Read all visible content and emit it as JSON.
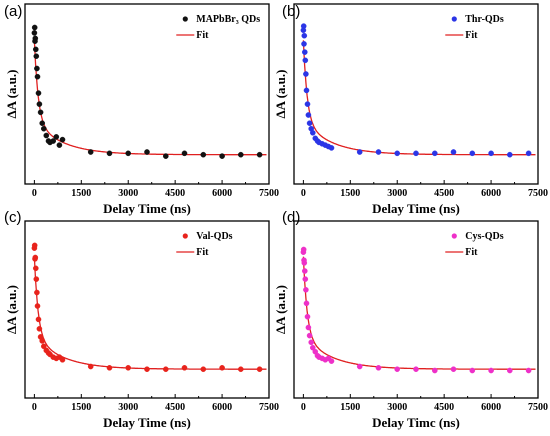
{
  "chart_data": [
    {
      "type": "scatter",
      "panel_label": "(a)",
      "xlabel": "Delay Time (ns)",
      "ylabel": "ΔA (a.u.)",
      "xlim": [
        -300,
        7500
      ],
      "x_ticks": [
        0,
        1500,
        3000,
        4500,
        6000,
        7500
      ],
      "y_ticks_shown": false,
      "legend_position": "top-right",
      "marker_color": "#111111",
      "fit_color": "#e02020",
      "series": [
        {
          "name": "MAPbBr₃ QDs",
          "kind": "points",
          "x": [
            0,
            10,
            20,
            30,
            45,
            60,
            80,
            100,
            130,
            160,
            200,
            250,
            300,
            380,
            450,
            500,
            600,
            700,
            800,
            900,
            1800,
            2400,
            3000,
            3600,
            4200,
            4800,
            5400,
            6000,
            6600,
            7200
          ],
          "y": [
            0.92,
            0.96,
            0.86,
            0.88,
            0.8,
            0.75,
            0.66,
            0.6,
            0.48,
            0.4,
            0.34,
            0.26,
            0.22,
            0.17,
            0.13,
            0.12,
            0.13,
            0.16,
            0.1,
            0.14,
            0.05,
            0.04,
            0.04,
            0.05,
            0.02,
            0.04,
            0.03,
            0.02,
            0.03,
            0.03
          ]
        },
        {
          "name": "Fit",
          "kind": "line"
        }
      ]
    },
    {
      "type": "scatter",
      "panel_label": "(b)",
      "xlabel": "Delay Time (ns)",
      "ylabel": "ΔA (a.u.)",
      "xlim": [
        -300,
        7500
      ],
      "x_ticks": [
        0,
        1500,
        3000,
        4500,
        6000,
        7500
      ],
      "y_ticks_shown": false,
      "legend_position": "top-right",
      "marker_color": "#2b35e6",
      "fit_color": "#e02020",
      "series": [
        {
          "name": "Thr-QDs",
          "kind": "points",
          "x": [
            0,
            10,
            20,
            30,
            45,
            60,
            80,
            100,
            130,
            160,
            200,
            250,
            300,
            380,
            450,
            500,
            600,
            700,
            800,
            900,
            1800,
            2400,
            3000,
            3600,
            4200,
            4800,
            5400,
            6000,
            6600,
            7200
          ],
          "y": [
            0.94,
            0.97,
            0.84,
            0.9,
            0.78,
            0.72,
            0.62,
            0.5,
            0.4,
            0.32,
            0.26,
            0.22,
            0.19,
            0.15,
            0.13,
            0.12,
            0.11,
            0.1,
            0.09,
            0.08,
            0.05,
            0.05,
            0.04,
            0.04,
            0.04,
            0.05,
            0.04,
            0.04,
            0.03,
            0.04
          ]
        },
        {
          "name": "Fit",
          "kind": "line"
        }
      ]
    },
    {
      "type": "scatter",
      "panel_label": "(c)",
      "xlabel": "Delay Time (ns)",
      "ylabel": "ΔA (a.u.)",
      "xlim": [
        -300,
        7500
      ],
      "x_ticks": [
        0,
        1500,
        3000,
        4500,
        6000,
        7500
      ],
      "y_ticks_shown": false,
      "legend_position": "top-right",
      "marker_color": "#e8231c",
      "fit_color": "#e02020",
      "series": [
        {
          "name": "Val-QDs",
          "kind": "points",
          "x": [
            0,
            10,
            20,
            30,
            45,
            60,
            80,
            100,
            130,
            160,
            200,
            250,
            300,
            380,
            450,
            500,
            600,
            700,
            800,
            900,
            1800,
            2400,
            3000,
            3600,
            4200,
            4800,
            5400,
            6000,
            6600,
            7200
          ],
          "y": [
            0.93,
            0.95,
            0.85,
            0.86,
            0.78,
            0.7,
            0.6,
            0.5,
            0.4,
            0.33,
            0.27,
            0.24,
            0.2,
            0.17,
            0.15,
            0.14,
            0.12,
            0.11,
            0.12,
            0.1,
            0.05,
            0.04,
            0.04,
            0.03,
            0.03,
            0.04,
            0.03,
            0.04,
            0.03,
            0.03
          ]
        },
        {
          "name": "Fit",
          "kind": "line"
        }
      ]
    },
    {
      "type": "scatter",
      "panel_label": "(d)",
      "xlabel": "Delay Timc (ns)",
      "ylabel": "ΔA (a.u.)",
      "xlim": [
        -300,
        7500
      ],
      "x_ticks": [
        0,
        1500,
        3000,
        4500,
        6000,
        7500
      ],
      "y_ticks_shown": false,
      "legend_position": "top-right",
      "marker_color": "#ee30c8",
      "fit_color": "#e02020",
      "series": [
        {
          "name": "Cys-QDs",
          "kind": "points",
          "x": [
            0,
            10,
            20,
            30,
            45,
            60,
            80,
            100,
            130,
            160,
            200,
            250,
            300,
            380,
            450,
            500,
            600,
            700,
            800,
            900,
            1800,
            2400,
            3000,
            3600,
            4200,
            4800,
            5400,
            6000,
            6600,
            7200
          ],
          "y": [
            0.9,
            0.92,
            0.84,
            0.82,
            0.76,
            0.7,
            0.62,
            0.52,
            0.42,
            0.34,
            0.28,
            0.23,
            0.19,
            0.16,
            0.13,
            0.12,
            0.11,
            0.1,
            0.11,
            0.09,
            0.05,
            0.04,
            0.03,
            0.03,
            0.02,
            0.03,
            0.02,
            0.02,
            0.02,
            0.02
          ]
        },
        {
          "name": "Fit",
          "kind": "line"
        }
      ]
    }
  ]
}
